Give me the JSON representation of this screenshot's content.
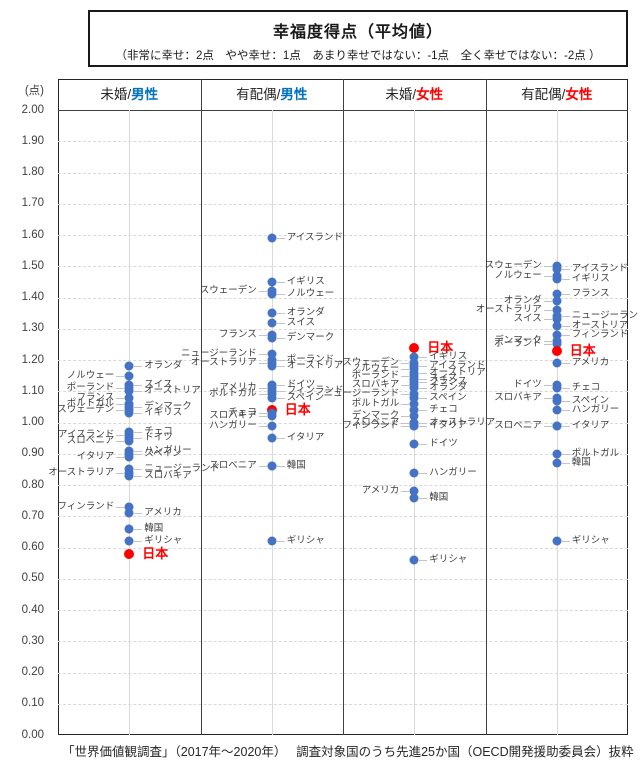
{
  "title": "幸福度得点（平均値）",
  "subtitle": "（非常に幸せ：2点　やや幸せ：1点　あまり幸せではない：-1点　全く幸せではない：-2点 ）",
  "footer": "「世界価値観調査」（2017年～2020年）　 調査対象国のうち先進25か国（OECD開発援助委員会）抜粋",
  "y_axis": {
    "unit": "(点)",
    "min": 0,
    "max": 2,
    "step": 0.1,
    "tick_format": "2-decimals"
  },
  "colors": {
    "dot_blue": "#4472C4",
    "dot_red": "#FF0000",
    "male_header": "#0070C0",
    "female_header": "#FF0000",
    "grid": "#D9D9D9",
    "label_text": "#404040"
  },
  "chart_data": {
    "type": "scatter",
    "title": "幸福度得点（平均値）",
    "ylabel": "(点)",
    "ylim": [
      0,
      2
    ],
    "ytick_step": 0.1,
    "grid": "horizontal-dashed",
    "groups": [
      {
        "header_prefix": "未婚/",
        "header_gender": "男性",
        "header_gender_color": "#0070C0",
        "points": [
          {
            "n": "オランダ",
            "v": 1.18,
            "s": "r"
          },
          {
            "n": "ノルウェー",
            "v": 1.15,
            "s": "l"
          },
          {
            "n": "スイス",
            "v": 1.12,
            "s": "r"
          },
          {
            "n": "ポーランド",
            "v": 1.11,
            "s": "l"
          },
          {
            "n": "オーストリア",
            "v": 1.1,
            "s": "r"
          },
          {
            "n": "フランス",
            "v": 1.08,
            "s": "l"
          },
          {
            "n": "ポルトガル",
            "v": 1.06,
            "s": "l"
          },
          {
            "n": "デンマーク",
            "v": 1.05,
            "s": "r"
          },
          {
            "n": "スウェーデン",
            "v": 1.04,
            "s": "l"
          },
          {
            "n": "イギリス",
            "v": 1.03,
            "s": "r"
          },
          {
            "n": "チェコ",
            "v": 0.97,
            "s": "r"
          },
          {
            "n": "アイスランド",
            "v": 0.96,
            "s": "l"
          },
          {
            "n": "ドイツ",
            "v": 0.95,
            "s": "r"
          },
          {
            "n": "スロベニア",
            "v": 0.94,
            "s": "l"
          },
          {
            "n": "ハンガリー",
            "v": 0.91,
            "s": "r"
          },
          {
            "n": "スペイン",
            "v": 0.9,
            "s": "r"
          },
          {
            "n": "イタリア",
            "v": 0.89,
            "s": "l"
          },
          {
            "n": "ニュージーランド",
            "v": 0.85,
            "s": "r"
          },
          {
            "n": "オーストラリア",
            "v": 0.84,
            "s": "l"
          },
          {
            "n": "スロバキア",
            "v": 0.83,
            "s": "r"
          },
          {
            "n": "フィンランド",
            "v": 0.73,
            "s": "l"
          },
          {
            "n": "アメリカ",
            "v": 0.71,
            "s": "r"
          },
          {
            "n": "韓国",
            "v": 0.66,
            "s": "r"
          },
          {
            "n": "ギリシャ",
            "v": 0.62,
            "s": "r"
          },
          {
            "n": "日本",
            "v": 0.58,
            "s": "r",
            "highlight": true
          }
        ]
      },
      {
        "header_prefix": "有配偶/",
        "header_gender": "男性",
        "header_gender_color": "#0070C0",
        "points": [
          {
            "n": "アイスランド",
            "v": 1.59,
            "s": "r"
          },
          {
            "n": "イギリス",
            "v": 1.45,
            "s": "r"
          },
          {
            "n": "スウェーデン",
            "v": 1.42,
            "s": "l"
          },
          {
            "n": "ノルウェー",
            "v": 1.41,
            "s": "r"
          },
          {
            "n": "オランダ",
            "v": 1.35,
            "s": "r"
          },
          {
            "n": "スイス",
            "v": 1.32,
            "s": "r"
          },
          {
            "n": "フランス",
            "v": 1.28,
            "s": "l"
          },
          {
            "n": "デンマーク",
            "v": 1.27,
            "s": "r"
          },
          {
            "n": "ニュージーランド",
            "v": 1.22,
            "s": "l"
          },
          {
            "n": "ポーランド",
            "v": 1.2,
            "s": "r"
          },
          {
            "n": "オーストラリア",
            "v": 1.19,
            "s": "l"
          },
          {
            "n": "オーストリア",
            "v": 1.18,
            "s": "r"
          },
          {
            "n": "ドイツ",
            "v": 1.12,
            "s": "r"
          },
          {
            "n": "アメリカ",
            "v": 1.11,
            "s": "l"
          },
          {
            "n": "フィンランド",
            "v": 1.1,
            "s": "r"
          },
          {
            "n": "ポルトガル",
            "v": 1.09,
            "s": "l"
          },
          {
            "n": "スペイン",
            "v": 1.08,
            "s": "r"
          },
          {
            "n": "日本",
            "v": 1.04,
            "s": "r",
            "highlight": true
          },
          {
            "n": "チェコ",
            "v": 1.03,
            "s": "l"
          },
          {
            "n": "スロバキア",
            "v": 1.02,
            "s": "l"
          },
          {
            "n": "ハンガリー",
            "v": 0.99,
            "s": "l"
          },
          {
            "n": "イタリア",
            "v": 0.95,
            "s": "r"
          },
          {
            "n": "スロベニア",
            "v": 0.86,
            "s": "l"
          },
          {
            "n": "韓国",
            "v": 0.86,
            "s": "r"
          },
          {
            "n": "ギリシャ",
            "v": 0.62,
            "s": "r"
          }
        ]
      },
      {
        "header_prefix": "未婚/",
        "header_gender": "女性",
        "header_gender_color": "#FF0000",
        "points": [
          {
            "n": "日本",
            "v": 1.24,
            "s": "r",
            "highlight": true
          },
          {
            "n": "イギリス",
            "v": 1.21,
            "s": "r"
          },
          {
            "n": "スウェーデン",
            "v": 1.19,
            "s": "l"
          },
          {
            "n": "アイスランド",
            "v": 1.18,
            "s": "r"
          },
          {
            "n": "ノルウェー",
            "v": 1.17,
            "s": "l"
          },
          {
            "n": "オーストリア",
            "v": 1.16,
            "s": "r"
          },
          {
            "n": "ポーランド",
            "v": 1.15,
            "s": "l"
          },
          {
            "n": "スイス",
            "v": 1.14,
            "s": "r"
          },
          {
            "n": "フランス",
            "v": 1.13,
            "s": "r"
          },
          {
            "n": "スロバキア",
            "v": 1.12,
            "s": "l"
          },
          {
            "n": "オランダ",
            "v": 1.11,
            "s": "r"
          },
          {
            "n": "ニュージーランド",
            "v": 1.09,
            "s": "l"
          },
          {
            "n": "スペイン",
            "v": 1.08,
            "s": "r"
          },
          {
            "n": "ポルトガル",
            "v": 1.06,
            "s": "l"
          },
          {
            "n": "チェコ",
            "v": 1.04,
            "s": "r"
          },
          {
            "n": "デンマーク",
            "v": 1.02,
            "s": "l"
          },
          {
            "n": "スロベニア",
            "v": 1.0,
            "s": "l"
          },
          {
            "n": "オーストラリア",
            "v": 1.0,
            "s": "r"
          },
          {
            "n": "フィンランド",
            "v": 0.99,
            "s": "l"
          },
          {
            "n": "イタリア",
            "v": 0.99,
            "s": "r"
          },
          {
            "n": "ドイツ",
            "v": 0.93,
            "s": "r"
          },
          {
            "n": "ハンガリー",
            "v": 0.84,
            "s": "r"
          },
          {
            "n": "アメリカ",
            "v": 0.78,
            "s": "l"
          },
          {
            "n": "韓国",
            "v": 0.76,
            "s": "r"
          },
          {
            "n": "ギリシャ",
            "v": 0.56,
            "s": "r"
          }
        ]
      },
      {
        "header_prefix": "有配偶/",
        "header_gender": "女性",
        "header_gender_color": "#FF0000",
        "points": [
          {
            "n": "スウェーデン",
            "v": 1.5,
            "s": "l"
          },
          {
            "n": "アイスランド",
            "v": 1.49,
            "s": "r"
          },
          {
            "n": "ノルウェー",
            "v": 1.47,
            "s": "l"
          },
          {
            "n": "イギリス",
            "v": 1.46,
            "s": "r"
          },
          {
            "n": "フランス",
            "v": 1.41,
            "s": "r"
          },
          {
            "n": "オランダ",
            "v": 1.39,
            "s": "l"
          },
          {
            "n": "オーストラリア",
            "v": 1.36,
            "s": "l"
          },
          {
            "n": "ニュージーランド",
            "v": 1.34,
            "s": "r"
          },
          {
            "n": "スイス",
            "v": 1.33,
            "s": "l"
          },
          {
            "n": "オーストリア",
            "v": 1.31,
            "s": "r"
          },
          {
            "n": "フィンランド",
            "v": 1.28,
            "s": "r"
          },
          {
            "n": "デンマーク",
            "v": 1.26,
            "s": "l"
          },
          {
            "n": "ポーランド",
            "v": 1.25,
            "s": "l"
          },
          {
            "n": "日本",
            "v": 1.23,
            "s": "r",
            "highlight": true
          },
          {
            "n": "アメリカ",
            "v": 1.19,
            "s": "r"
          },
          {
            "n": "ドイツ",
            "v": 1.12,
            "s": "l"
          },
          {
            "n": "チェコ",
            "v": 1.11,
            "s": "r"
          },
          {
            "n": "スロバキア",
            "v": 1.08,
            "s": "l"
          },
          {
            "n": "スペイン",
            "v": 1.07,
            "s": "r"
          },
          {
            "n": "ハンガリー",
            "v": 1.04,
            "s": "r"
          },
          {
            "n": "スロベニア",
            "v": 0.99,
            "s": "l"
          },
          {
            "n": "イタリア",
            "v": 0.99,
            "s": "r"
          },
          {
            "n": "ポルトガル",
            "v": 0.9,
            "s": "r"
          },
          {
            "n": "韓国",
            "v": 0.87,
            "s": "r"
          },
          {
            "n": "ギリシャ",
            "v": 0.62,
            "s": "r"
          }
        ]
      }
    ]
  }
}
